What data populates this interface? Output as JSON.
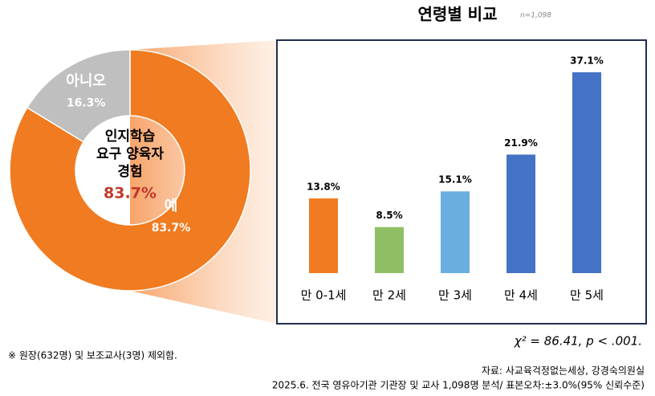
{
  "chart_data": [
    {
      "type": "pie",
      "donut": true,
      "center_label": [
        "인지학습",
        "요구 양육자",
        "경험"
      ],
      "center_value_label": "83.7%",
      "categories": [
        "예",
        "아니오"
      ],
      "values": [
        83.7,
        16.3
      ],
      "value_labels": [
        "83.7%",
        "16.3%"
      ],
      "colors": [
        "#f07b20",
        "#bfbfbf"
      ]
    },
    {
      "type": "bar",
      "title": "연령별 비교",
      "subtitle": "n=1,098",
      "categories": [
        "만 0-1세",
        "만 2세",
        "만 3세",
        "만 4세",
        "만 5세"
      ],
      "values": [
        13.8,
        8.5,
        15.1,
        21.9,
        37.1
      ],
      "value_labels": [
        "13.8%",
        "8.5%",
        "15.1%",
        "21.9%",
        "37.1%"
      ],
      "colors": [
        "#f07b20",
        "#8fbf64",
        "#6aaee0",
        "#4472c4",
        "#4472c4"
      ],
      "annotation": "χ² = 86.41, p < .001."
    }
  ],
  "footnote": "※ 원장(632명) 및 보조교사(3명) 제외함.",
  "source": [
    "자료: 사교육걱정없는세상, 강경숙의원실",
    "2025.6. 전국 영유아기관 기관장 및 교사 1,098명 분석/ 표본오차:±3.0%(95% 신뢰수준)"
  ]
}
